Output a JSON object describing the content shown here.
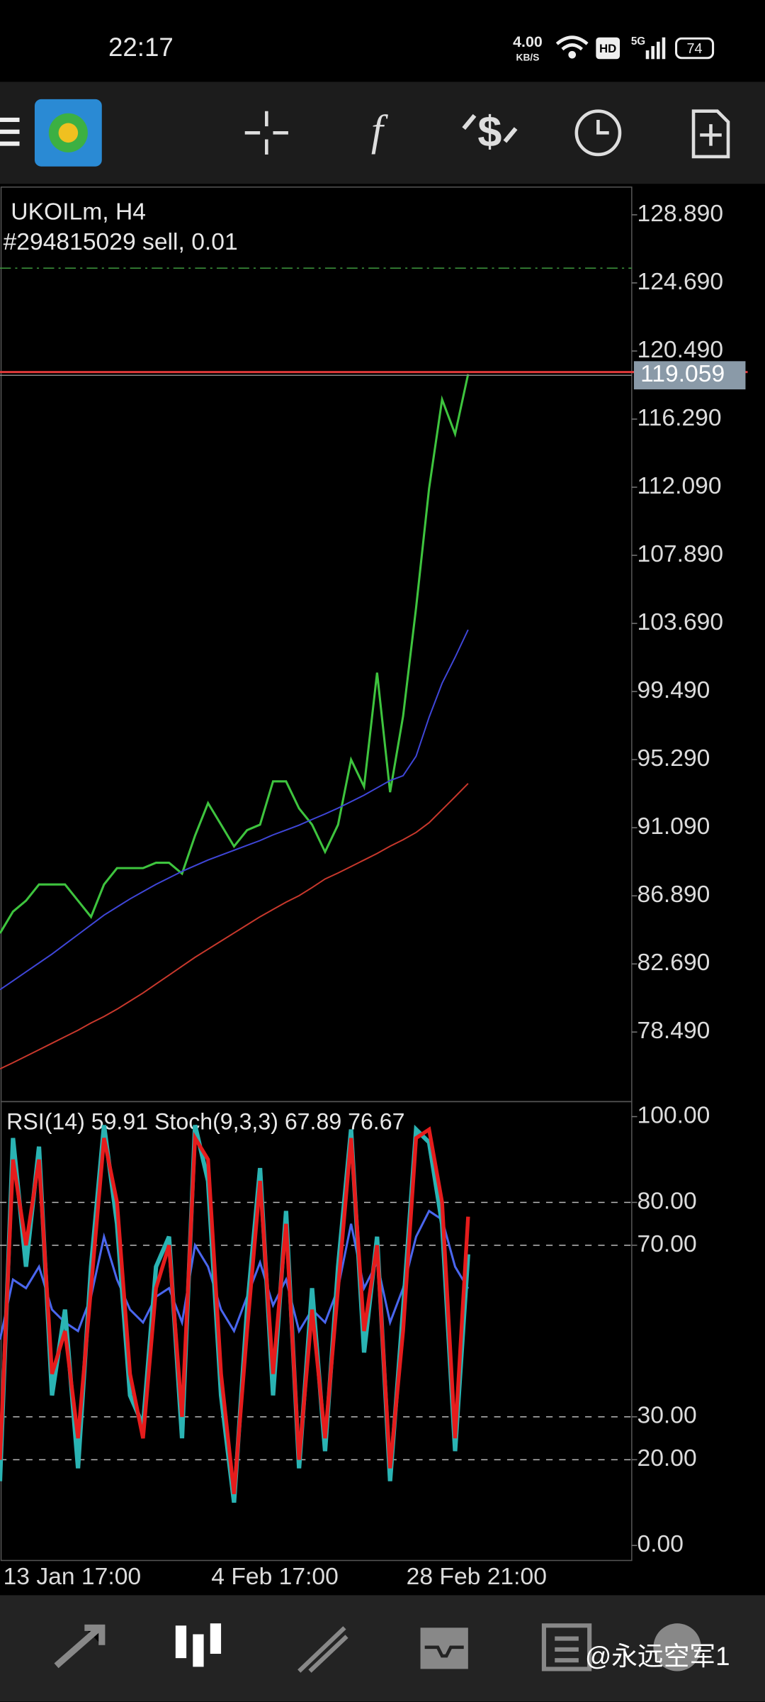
{
  "status_bar": {
    "time": "22:17",
    "speed": "4.00",
    "speed_unit": "KB/S",
    "hd": "HD",
    "network": "5G",
    "battery": "74"
  },
  "chart_data": [
    {
      "type": "line",
      "title": "UKOILm, H4",
      "annotation": "#294815029 sell, 0.01",
      "order_price": 125.6,
      "price_line": 119.059,
      "ylim": [
        74.2,
        130.6
      ],
      "yticks": [
        {
          "value": 128.89,
          "label": "128.890"
        },
        {
          "value": 124.69,
          "label": "124.690"
        },
        {
          "value": 120.49,
          "label": "120.490"
        },
        {
          "value": 116.29,
          "label": "116.290"
        },
        {
          "value": 112.09,
          "label": "112.090"
        },
        {
          "value": 107.89,
          "label": "107.890"
        },
        {
          "value": 103.69,
          "label": "103.690"
        },
        {
          "value": 99.49,
          "label": "99.490"
        },
        {
          "value": 95.29,
          "label": "95.290"
        },
        {
          "value": 91.09,
          "label": "91.090"
        },
        {
          "value": 86.89,
          "label": "86.890"
        },
        {
          "value": 82.69,
          "label": "82.690"
        },
        {
          "value": 78.49,
          "label": "78.490"
        }
      ],
      "series": [
        {
          "color": "#3ec43e",
          "values": [
            84.58,
            85.92,
            86.59,
            87.59,
            87.59,
            87.59,
            86.59,
            85.59,
            87.59,
            88.6,
            88.6,
            88.6,
            88.93,
            88.93,
            88.26,
            90.6,
            92.61,
            91.28,
            89.94,
            90.94,
            91.28,
            93.95,
            93.95,
            92.28,
            91.28,
            89.6,
            91.28,
            95.29,
            93.62,
            100.65,
            93.28,
            97.97,
            104.66,
            112.02,
            117.5,
            115.37,
            119.06
          ]
        },
        {
          "color": "#3f46d8",
          "values": [
            81.1,
            81.65,
            82.2,
            82.75,
            83.3,
            83.9,
            84.5,
            85.1,
            85.7,
            86.2,
            86.7,
            87.15,
            87.6,
            88.0,
            88.4,
            88.75,
            89.1,
            89.4,
            89.7,
            90.0,
            90.3,
            90.65,
            90.95,
            91.25,
            91.6,
            91.94,
            92.3,
            92.7,
            93.1,
            93.55,
            94.0,
            94.3,
            95.5,
            97.9,
            100.0,
            101.6,
            103.3
          ]
        },
        {
          "color": "#c8382c",
          "values": [
            76.22,
            76.6,
            77.0,
            77.4,
            77.8,
            78.2,
            78.6,
            79.05,
            79.45,
            79.9,
            80.4,
            80.9,
            81.45,
            82.0,
            82.55,
            83.1,
            83.6,
            84.1,
            84.6,
            85.1,
            85.6,
            86.05,
            86.5,
            86.9,
            87.4,
            87.93,
            88.3,
            88.7,
            89.1,
            89.5,
            89.95,
            90.35,
            90.8,
            91.4,
            92.2,
            93.0,
            93.82
          ]
        }
      ]
    },
    {
      "type": "line",
      "title": "RSI(14) 59.91 Stoch(9,3,3) 67.89 76.67",
      "categories": [
        "13 Jan 17:00",
        null,
        null,
        null,
        null,
        null,
        null,
        null,
        null,
        null,
        null,
        null,
        null,
        null,
        null,
        null,
        "4 Feb 17:00",
        null,
        null,
        null,
        null,
        null,
        null,
        null,
        null,
        null,
        null,
        null,
        null,
        null,
        null,
        "28 Feb 21:00",
        null,
        null,
        null,
        null,
        null
      ],
      "ylim": [
        -3.5,
        103.5
      ],
      "yticks": [
        {
          "value": 100,
          "label": "100.00"
        },
        {
          "value": 80,
          "label": "80.00"
        },
        {
          "value": 70,
          "label": "70.00"
        },
        {
          "value": 30,
          "label": "30.00"
        },
        {
          "value": 20,
          "label": "20.00"
        },
        {
          "value": 0,
          "label": "0.00"
        }
      ],
      "levels": [
        80,
        70,
        30,
        20
      ],
      "series": [
        {
          "color": "#4a66ee",
          "values": [
            48,
            62,
            60,
            65,
            55,
            52,
            50,
            58,
            72,
            62,
            55,
            52,
            58,
            60,
            52,
            70,
            65,
            55,
            50,
            58,
            66,
            56,
            62,
            50,
            55,
            52,
            60,
            75,
            60,
            66,
            52,
            60,
            72,
            78,
            76,
            65,
            59.91
          ]
        },
        {
          "color": "#2ab3b3",
          "values": [
            15,
            95,
            65,
            93,
            35,
            55,
            18,
            65,
            98,
            75,
            35,
            28,
            65,
            72,
            25,
            98,
            85,
            35,
            10,
            55,
            88,
            35,
            78,
            18,
            60,
            22,
            65,
            97,
            45,
            72,
            15,
            55,
            97,
            94,
            75,
            22,
            67.89
          ]
        },
        {
          "color": "#e51c1c",
          "values": [
            20,
            90,
            70,
            90,
            40,
            50,
            25,
            60,
            95,
            80,
            40,
            25,
            60,
            70,
            30,
            95,
            90,
            40,
            12,
            50,
            85,
            40,
            75,
            20,
            55,
            25,
            60,
            95,
            50,
            70,
            18,
            50,
            95,
            97,
            80,
            25,
            76.67
          ]
        }
      ]
    }
  ],
  "watermark": "@永远空军1"
}
